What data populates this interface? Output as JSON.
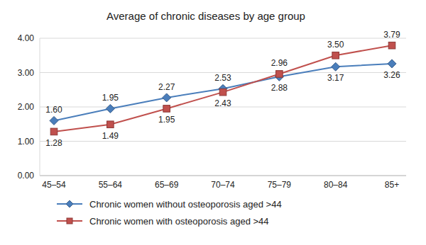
{
  "chart_data": {
    "type": "line",
    "title": "Average of chronic diseases by age group",
    "categories": [
      "45–54",
      "55–64",
      "65–69",
      "70–74",
      "75–79",
      "80–84",
      "85+"
    ],
    "series": [
      {
        "name": "Chronic women without osteoporosis aged >44",
        "color": "#4a7ebb",
        "marker": "diamond",
        "values": [
          1.6,
          1.95,
          2.27,
          2.53,
          2.88,
          3.17,
          3.26
        ],
        "value_labels": [
          "1.60",
          "1.95",
          "2.27",
          "2.53",
          "2.88",
          "3.17",
          "3.26"
        ]
      },
      {
        "name": "Chronic women with osteoporosis aged >44",
        "color": "#c0504d",
        "marker": "square",
        "values": [
          1.28,
          1.49,
          1.95,
          2.43,
          2.96,
          3.5,
          3.79
        ],
        "value_labels": [
          "1.28",
          "1.49",
          "1.95",
          "2.43",
          "2.96",
          "3.50",
          "3.79"
        ]
      }
    ],
    "ylim": [
      0,
      4
    ],
    "yticks": [
      {
        "value": 0,
        "label": "0.00"
      },
      {
        "value": 1,
        "label": "1.00"
      },
      {
        "value": 2,
        "label": "2.00"
      },
      {
        "value": 3,
        "label": "3.00"
      },
      {
        "value": 4,
        "label": "4.00"
      }
    ],
    "grid": true,
    "data_labels": true,
    "legend": "bottom"
  }
}
